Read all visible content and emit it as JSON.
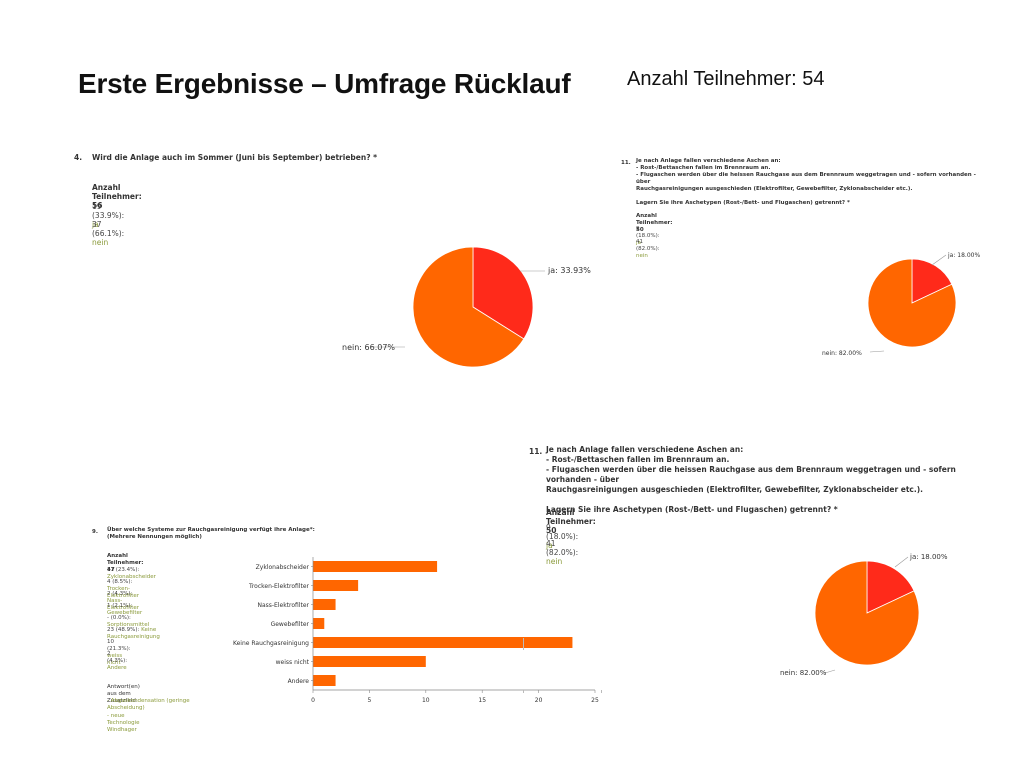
{
  "slide": {
    "title": "Erste Ergebnisse – Umfrage Rücklauf",
    "participants_total": "Anzahl Teilnehmer: 54"
  },
  "colors": {
    "orange": "#ff6600",
    "red": "#ff2a1a",
    "answer_label": "#8a9a3a"
  },
  "q4": {
    "number": "4.",
    "question": "Wird die Anlage auch im Sommer (Juni bis September) betrieben? *",
    "participants": "Anzahl Teilnehmer: 56",
    "answers": [
      {
        "value": "19 (33.9%):",
        "label": "ja"
      },
      {
        "value": "37 (66.1%):",
        "label": "nein"
      }
    ]
  },
  "q11_small": {
    "number": "11.",
    "question": "Je nach Anlage fallen verschiedene Aschen an:\n- Rost-/Bettaschen fallen im Brennraum an.\n- Flugaschen werden über die heissen Rauchgase aus dem Brennraum weggetragen und - sofern vorhanden - über\nRauchgasreinigungen ausgeschieden (Elektrofilter, Gewebefilter, Zyklonabscheider etc.).\n\nLagern Sie ihre Aschetypen (Rost-/Bett- und Flugaschen) getrennt? *",
    "participants": "Anzahl Teilnehmer: 50",
    "answers": [
      {
        "value": "9 (18.0%):",
        "label": "ja"
      },
      {
        "value": "41 (82.0%):",
        "label": "nein"
      }
    ]
  },
  "q11": {
    "number": "11.",
    "question": "Je nach Anlage fallen verschiedene Aschen an:\n- Rost-/Bettaschen fallen im Brennraum an.\n- Flugaschen werden über die heissen Rauchgase aus dem Brennraum weggetragen und - sofern vorhanden - über\nRauchgasreinigungen ausgeschieden (Elektrofilter, Gewebefilter, Zyklonabscheider etc.).\n\nLagern Sie ihre Aschetypen (Rost-/Bett- und Flugaschen) getrennt? *",
    "participants": "Anzahl Teilnehmer: 50",
    "answers": [
      {
        "value": "9 (18.0%):",
        "label": "ja"
      },
      {
        "value": "41 (82.0%):",
        "label": "nein"
      }
    ]
  },
  "q9": {
    "number": "9.",
    "question": "Über welche Systeme zur Rauchgasreinigung verfügt ihre Anlage*:\n(Mehrere Nennungen möglich)",
    "participants": "Anzahl Teilnehmer: 47",
    "answers": [
      {
        "value": "11 (23.4%):",
        "label": "Zyklonabscheider"
      },
      {
        "value": "4 (8.5%):",
        "label": "Trocken-Elektrofilter"
      },
      {
        "value": "2 (4.3%):",
        "label": "Nass-Elektrofilter"
      },
      {
        "value": "1 (2.1%):",
        "label": "Gewebefilter"
      },
      {
        "value": "- (0.0%):",
        "label": "Sorptionsmittel"
      },
      {
        "value": "23 (48.9%):",
        "label": "Keine Rauchgasreinigung"
      },
      {
        "value": "10 (21.3%):",
        "label": "weiss nicht"
      },
      {
        "value": "2 (4.3%):",
        "label": "Andere"
      }
    ],
    "extra_heading": "Antwort(en) aus dem Zusatzfeld:",
    "extra_answers": [
      "- Abgaskondensation (geringe Abscheidung)",
      "- neue Technologie Windhager"
    ]
  },
  "chart_data": [
    {
      "type": "pie",
      "id": "q4-pie",
      "title": "",
      "slices": [
        {
          "label": "ja",
          "value": 33.93,
          "text": "ja: 33.93%",
          "color": "#ff2a1a"
        },
        {
          "label": "nein",
          "value": 66.07,
          "text": "nein: 66.07%",
          "color": "#ff6600"
        }
      ]
    },
    {
      "type": "pie",
      "id": "q11-small-pie",
      "title": "",
      "slices": [
        {
          "label": "ja",
          "value": 18.0,
          "text": "ja: 18.00%",
          "color": "#ff2a1a"
        },
        {
          "label": "nein",
          "value": 82.0,
          "text": "nein: 82.00%",
          "color": "#ff6600"
        }
      ]
    },
    {
      "type": "pie",
      "id": "q11-pie",
      "title": "",
      "slices": [
        {
          "label": "ja",
          "value": 18.0,
          "text": "ja: 18.00%",
          "color": "#ff2a1a"
        },
        {
          "label": "nein",
          "value": 82.0,
          "text": "nein: 82.00%",
          "color": "#ff6600"
        }
      ]
    },
    {
      "type": "bar",
      "orientation": "horizontal",
      "id": "q9-bar",
      "title": "",
      "categories": [
        "Zyklonabscheider",
        "Trocken-Elektrofilter",
        "Nass-Elektrofilter",
        "Gewebefilter",
        "Keine Rauchgasreinigung",
        "weiss nicht",
        "Andere"
      ],
      "values": [
        11,
        4,
        2,
        1,
        23,
        10,
        2
      ],
      "xlim": [
        0,
        25
      ],
      "xticks": [
        0,
        5,
        10,
        15,
        20,
        25
      ],
      "color": "#ff6600",
      "grid": false
    }
  ]
}
